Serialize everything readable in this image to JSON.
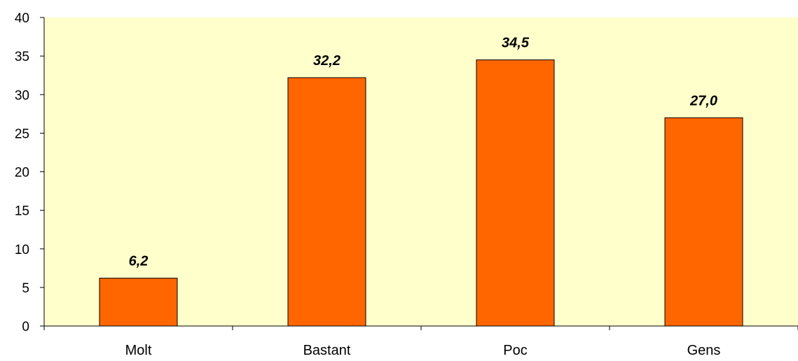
{
  "chart_data": {
    "type": "bar",
    "categories": [
      "Molt",
      "Bastant",
      "Poc",
      "Gens"
    ],
    "values": [
      6.2,
      32.2,
      34.5,
      27.0
    ],
    "data_labels": [
      "6,2",
      "32,2",
      "34,5",
      "27,0"
    ],
    "title": "",
    "xlabel": "",
    "ylabel": "",
    "ylim": [
      0,
      40
    ],
    "yticks": [
      0,
      5,
      10,
      15,
      20,
      25,
      30,
      35,
      40
    ],
    "ytick_labels": [
      "0",
      "5",
      "10",
      "15",
      "20",
      "25",
      "30",
      "35",
      "40"
    ],
    "grid": false,
    "legend": "none",
    "colors": {
      "bar_fill": "#FF6600",
      "bar_stroke": "#000000",
      "plot_background": "#FFFFCC",
      "axis": "#000000"
    }
  }
}
